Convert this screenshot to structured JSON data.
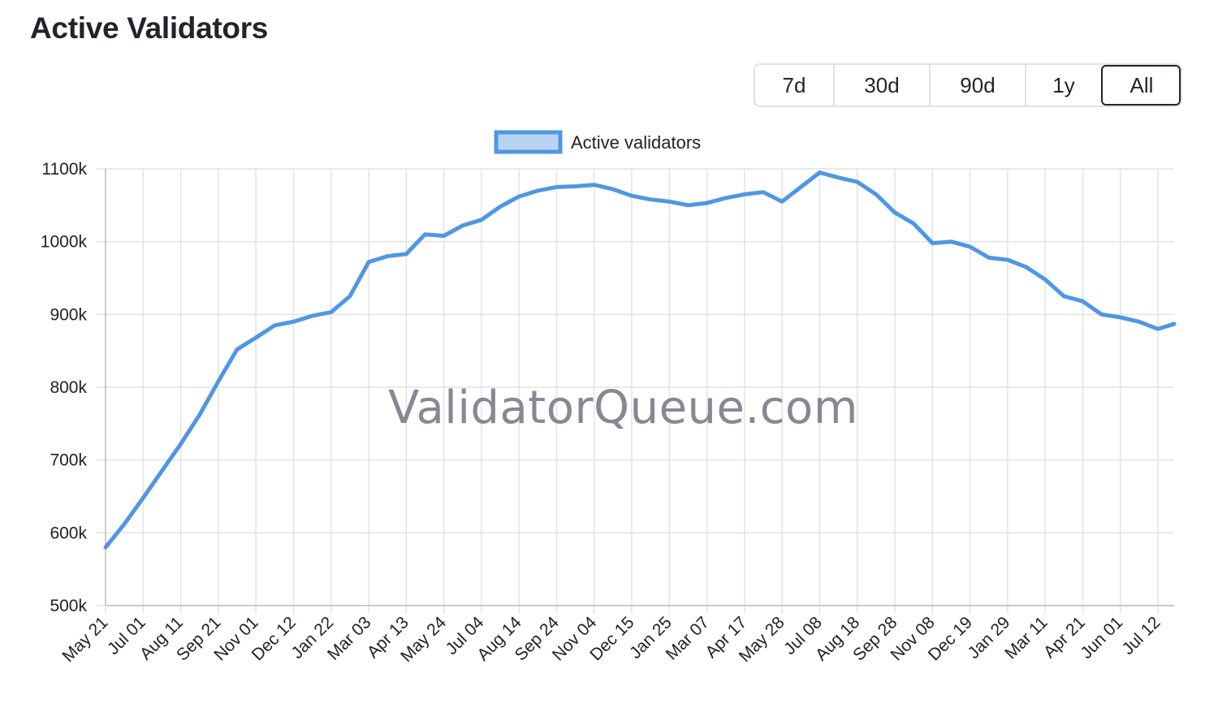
{
  "header": {
    "title": "Active Validators"
  },
  "range_buttons": [
    {
      "label": "7d",
      "active": false
    },
    {
      "label": "30d",
      "active": false
    },
    {
      "label": "90d",
      "active": false
    },
    {
      "label": "1y",
      "active": false
    },
    {
      "label": "All",
      "active": true
    }
  ],
  "watermark": "ValidatorQueue.com",
  "colors": {
    "series": "#4f97e3",
    "grid": "#e3e3e3",
    "active_border": "#212529"
  },
  "chart_data": {
    "type": "line",
    "title": "",
    "xlabel": "",
    "ylabel": "",
    "legend": {
      "position": "top-center",
      "entries": [
        "Active validators"
      ]
    },
    "grid": true,
    "ylim": [
      500000,
      1100000
    ],
    "yticks": [
      "500k",
      "600k",
      "700k",
      "800k",
      "900k",
      "1000k",
      "1100k"
    ],
    "yticks_values": [
      500000,
      600000,
      700000,
      800000,
      900000,
      1000000,
      1100000
    ],
    "xticks": [
      "May 21",
      "Jul 01",
      "Aug 11",
      "Sep 21",
      "Nov 01",
      "Dec 12",
      "Jan 22",
      "Mar 03",
      "Apr 13",
      "May 24",
      "Jul 04",
      "Aug 14",
      "Sep 24",
      "Nov 04",
      "Dec 15",
      "Jan 25",
      "Mar 07",
      "Apr 17",
      "May 28",
      "Jul 08",
      "Aug 18",
      "Sep 28",
      "Nov 08",
      "Dec 19",
      "Jan 29",
      "Mar 11",
      "Apr 21",
      "Jun 01",
      "Jul 12"
    ],
    "series": [
      {
        "name": "Active validators",
        "x": [
          "May 21",
          "Jun 10",
          "Jul 01",
          "Jul 21",
          "Aug 11",
          "Sep 01",
          "Sep 21",
          "Oct 11",
          "Nov 01",
          "Nov 21",
          "Dec 12",
          "Jan 01",
          "Jan 22",
          "Feb 11",
          "Mar 03",
          "Mar 23",
          "Apr 13",
          "May 03",
          "May 24",
          "Jun 13",
          "Jul 04",
          "Jul 24",
          "Aug 14",
          "Sep 03",
          "Sep 24",
          "Oct 14",
          "Nov 04",
          "Nov 24",
          "Dec 15",
          "Jan 04",
          "Jan 25",
          "Feb 15",
          "Mar 07",
          "Mar 27",
          "Apr 17",
          "May 07",
          "May 28",
          "Jun 17",
          "Jul 08",
          "Jul 28",
          "Aug 18",
          "Sep 07",
          "Sep 28",
          "Oct 18",
          "Nov 08",
          "Nov 28",
          "Dec 19",
          "Jan 08",
          "Jan 29",
          "Feb 19",
          "Mar 11",
          "Mar 31",
          "Apr 21",
          "May 11",
          "Jun 01",
          "Jun 21",
          "Jul 12",
          "Jul 28"
        ],
        "values": [
          580000,
          612000,
          648000,
          685000,
          722000,
          762000,
          808000,
          852000,
          868000,
          885000,
          890000,
          898000,
          903000,
          925000,
          972000,
          980000,
          983000,
          1010000,
          1008000,
          1022000,
          1030000,
          1048000,
          1062000,
          1070000,
          1075000,
          1076000,
          1078000,
          1072000,
          1063000,
          1058000,
          1055000,
          1050000,
          1053000,
          1060000,
          1065000,
          1068000,
          1055000,
          1075000,
          1095000,
          1088000,
          1082000,
          1065000,
          1040000,
          1025000,
          998000,
          1000000,
          993000,
          978000,
          975000,
          965000,
          948000,
          925000,
          918000,
          900000,
          896000,
          890000,
          880000,
          887000
        ]
      }
    ]
  }
}
